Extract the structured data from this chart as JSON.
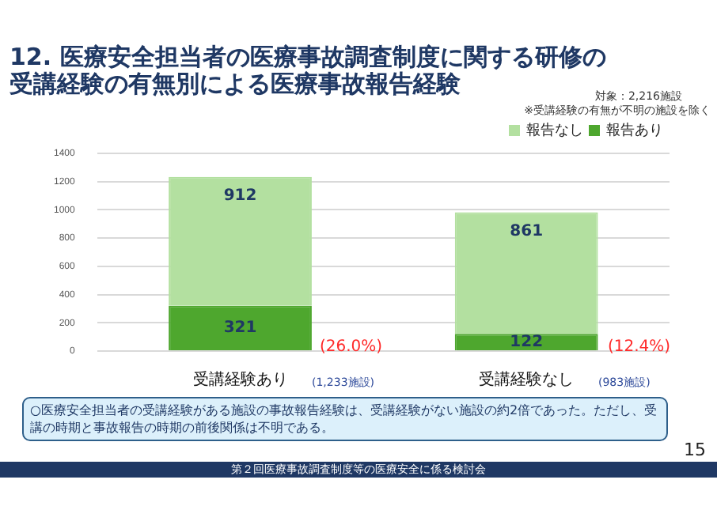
{
  "chart_data": {
    "type": "bar",
    "title": "12. 医療安全担当者の医療事故調査制度に関する研修の受講経験の有無別による医療事故報告経験",
    "categories": [
      "受講経験あり",
      "受講経験なし"
    ],
    "series": [
      {
        "name": "報告あり",
        "color": "#4ea72e",
        "values": [
          321,
          122
        ]
      },
      {
        "name": "報告なし",
        "color": "#b3e0a0",
        "values": [
          912,
          861
        ]
      }
    ],
    "stacked": true,
    "data_labels": true,
    "ylim": [
      0,
      1400
    ],
    "yticks": [
      0,
      200,
      400,
      600,
      800,
      1000,
      1200,
      1400
    ],
    "grid": "y",
    "legend": "top right",
    "annotations": [
      "対象：2,216施設",
      "※受講経験の有無が不明の施設を除く",
      "○医療安全担当者の受講経験がある施設の事故報告経験は、受講経験がない施設の約2倍であった。ただし、受講の時期と事故報告の時期の前後関係は不明である。",
      "15",
      "第２回医療事故調査制度等の医療安全に係る検討会",
      "(26.0%)",
      "(12.4%)",
      "(1,233施設)",
      "(983施設)"
    ]
  }
}
